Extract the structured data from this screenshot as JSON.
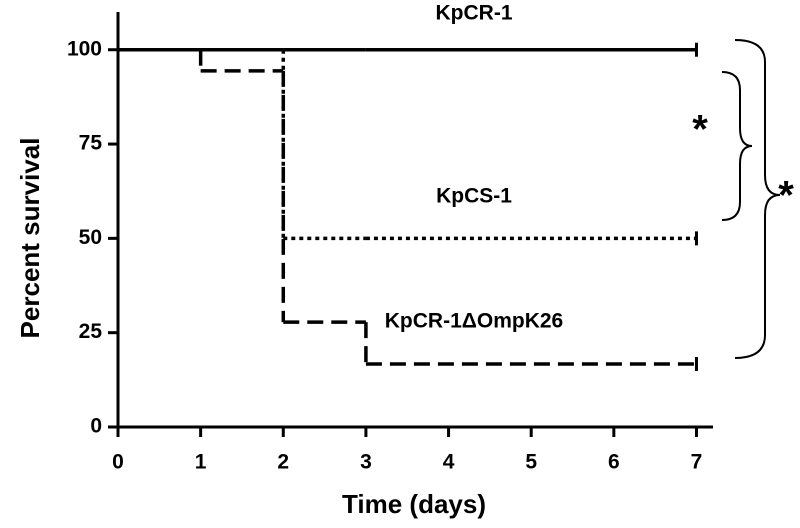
{
  "chart_data": {
    "type": "step",
    "xlabel": "Time (days)",
    "ylabel": "Percent survival",
    "x": [
      0,
      1,
      2,
      3,
      7
    ],
    "series": [
      {
        "name": "KpCR-1",
        "color": "#000000",
        "line_style": "solid",
        "values": [
          100,
          100,
          100,
          100,
          100
        ]
      },
      {
        "name": "KpCS-1",
        "color": "#000000",
        "line_style": "dotted",
        "values": [
          100,
          100,
          50,
          50,
          50
        ]
      },
      {
        "name": "KpCR-1ΔOmpK26",
        "color": "#000000",
        "line_style": "dashed",
        "values": [
          100,
          94.4,
          27.8,
          16.7,
          16.7
        ]
      }
    ],
    "annotations": [
      "*",
      "*"
    ],
    "xlim": [
      0,
      7.2
    ],
    "ylim": [
      0,
      110
    ],
    "xticks": [
      0,
      1,
      2,
      3,
      4,
      5,
      6,
      7
    ],
    "yticks": [
      0,
      25,
      50,
      75,
      100
    ]
  }
}
